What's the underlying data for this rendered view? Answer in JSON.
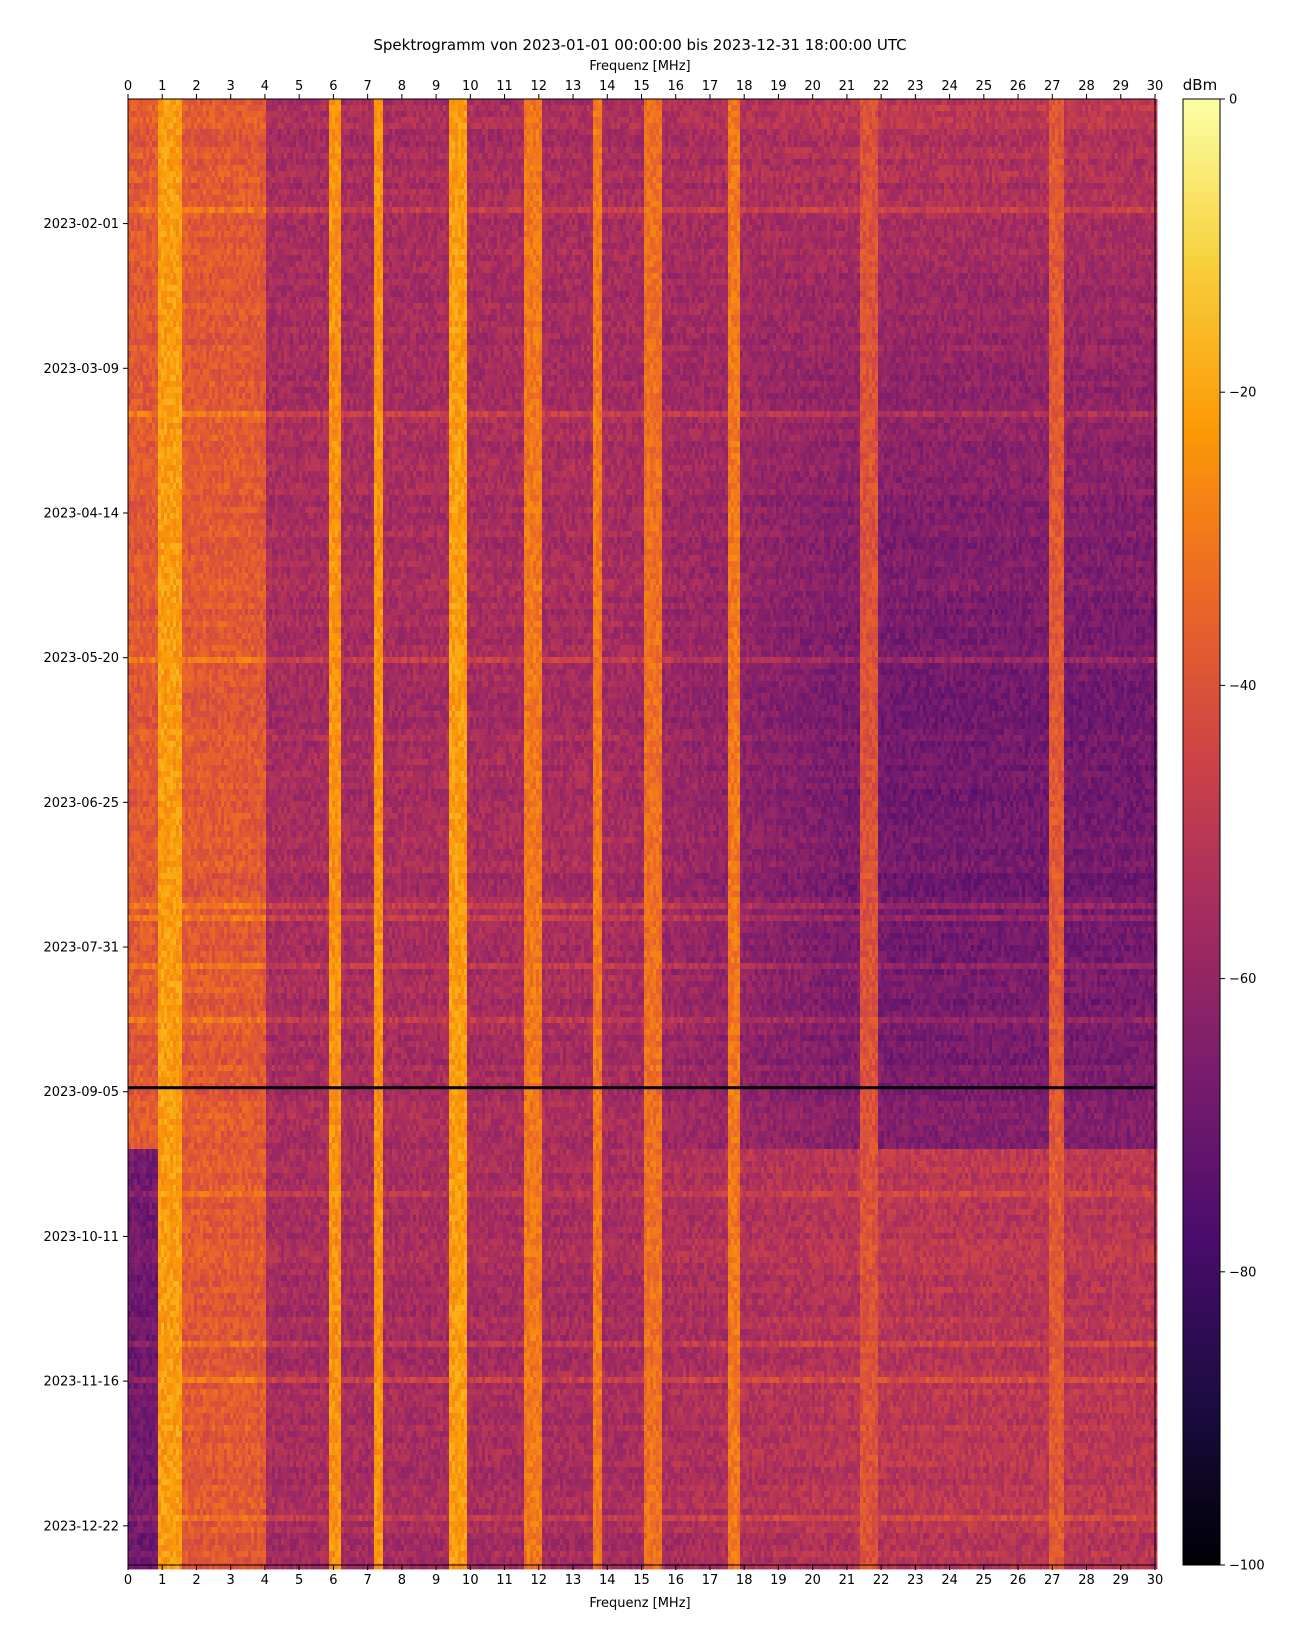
{
  "chart_data": {
    "type": "heatmap",
    "title": "Spektrogramm von 2023-01-01 00:00:00 bis 2023-12-31 18:00:00 UTC",
    "xlabel_top": "Frequenz [MHz]",
    "xlabel_bottom": "Frequenz [MHz]",
    "x_unit": "MHz",
    "xlim": [
      0,
      30
    ],
    "x_ticks": [
      "0",
      "1",
      "2",
      "3",
      "4",
      "5",
      "6",
      "7",
      "8",
      "9",
      "10",
      "11",
      "12",
      "13",
      "14",
      "15",
      "16",
      "17",
      "18",
      "19",
      "20",
      "21",
      "22",
      "23",
      "24",
      "25",
      "26",
      "27",
      "28",
      "29",
      "30"
    ],
    "ylim": [
      "2023-01-01 00:00:00",
      "2023-12-31 18:00:00"
    ],
    "y_tick_dates": [
      "2023-02-01",
      "2023-03-09",
      "2023-04-14",
      "2023-05-20",
      "2023-06-25",
      "2023-07-31",
      "2023-09-05",
      "2023-10-11",
      "2023-11-16",
      "2023-12-22"
    ],
    "colorbar": {
      "label": "dBm",
      "range": [
        -100,
        0
      ],
      "ticks": [
        "0",
        "−20",
        "−40",
        "−60",
        "−80",
        "−100"
      ],
      "tick_values": [
        0,
        -20,
        -40,
        -60,
        -80,
        -100
      ],
      "colormap": "inferno",
      "stops": [
        "#000004",
        "#1b0c41",
        "#4a0c6b",
        "#781c6d",
        "#a52c60",
        "#cf4446",
        "#ed6925",
        "#fb9b06",
        "#f7d13d",
        "#fcffa4"
      ]
    },
    "strong_bands_mhz": [
      {
        "from": 0.9,
        "to": 1.6,
        "level_dbm": -22
      },
      {
        "from": 5.9,
        "to": 6.2,
        "level_dbm": -24
      },
      {
        "from": 7.2,
        "to": 7.45,
        "level_dbm": -24
      },
      {
        "from": 9.4,
        "to": 9.9,
        "level_dbm": -22
      },
      {
        "from": 11.6,
        "to": 12.1,
        "level_dbm": -30
      },
      {
        "from": 13.55,
        "to": 13.85,
        "level_dbm": -30
      },
      {
        "from": 15.1,
        "to": 15.6,
        "level_dbm": -32
      },
      {
        "from": 17.5,
        "to": 17.9,
        "level_dbm": -30
      },
      {
        "from": 21.4,
        "to": 21.9,
        "level_dbm": -40
      },
      {
        "from": 26.9,
        "to": 27.3,
        "level_dbm": -38
      }
    ],
    "data_gap_date": "2023-09-04",
    "background_level_dbm": {
      "low_freq": -38,
      "mid_freq": -55,
      "high_freq_summer": -68,
      "high_freq_winter": -50
    }
  }
}
